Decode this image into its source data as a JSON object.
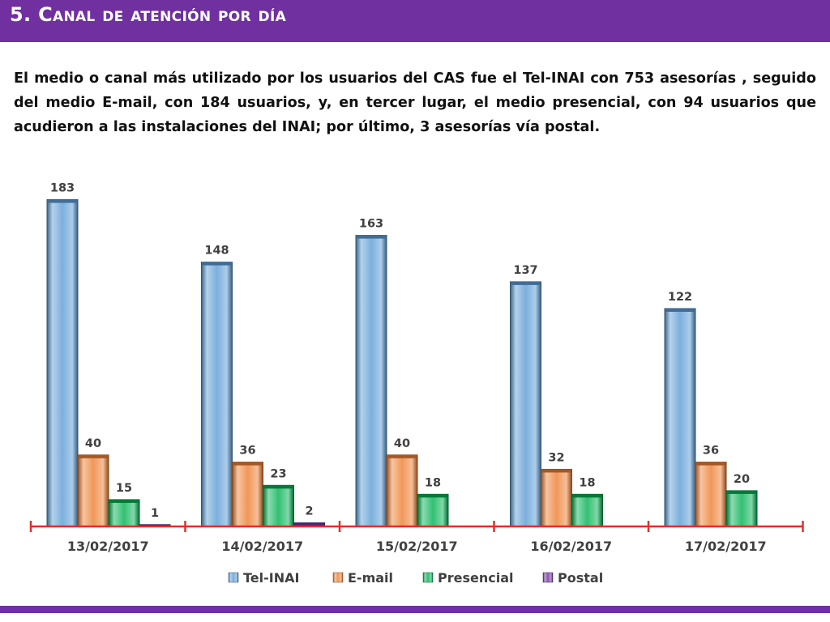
{
  "slide": {
    "title": "5. Canal de atención por día",
    "paragraph": "El medio o canal más utilizado por los usuarios del CAS fue el Tel-INAI con 753 asesorías , seguido del medio E-mail, con 184 usuarios, y, en tercer lugar, el medio presencial, con 94 usuarios que acudieron a las instalaciones del INAI; por último, 3 asesorías vía postal."
  },
  "colors": {
    "header": "#7030a0",
    "axis": "#e0302a"
  },
  "chart_data": {
    "type": "bar",
    "categories": [
      "13/02/2017",
      "14/02/2017",
      "15/02/2017",
      "16/02/2017",
      "17/02/2017"
    ],
    "series": [
      {
        "name": "Tel-INAI",
        "color": "#5b9bd5",
        "values": [
          183,
          148,
          163,
          137,
          122
        ]
      },
      {
        "name": "E-mail",
        "color": "#ed7d31",
        "values": [
          40,
          36,
          40,
          32,
          36
        ]
      },
      {
        "name": "Presencial",
        "color": "#00b050",
        "values": [
          15,
          23,
          18,
          18,
          20
        ]
      },
      {
        "name": "Postal",
        "color": "#7030a0",
        "values": [
          1,
          2,
          null,
          null,
          null
        ]
      }
    ],
    "data_labels": true,
    "legend_position": "bottom",
    "grid": false,
    "ylim": [
      0,
      200
    ]
  }
}
